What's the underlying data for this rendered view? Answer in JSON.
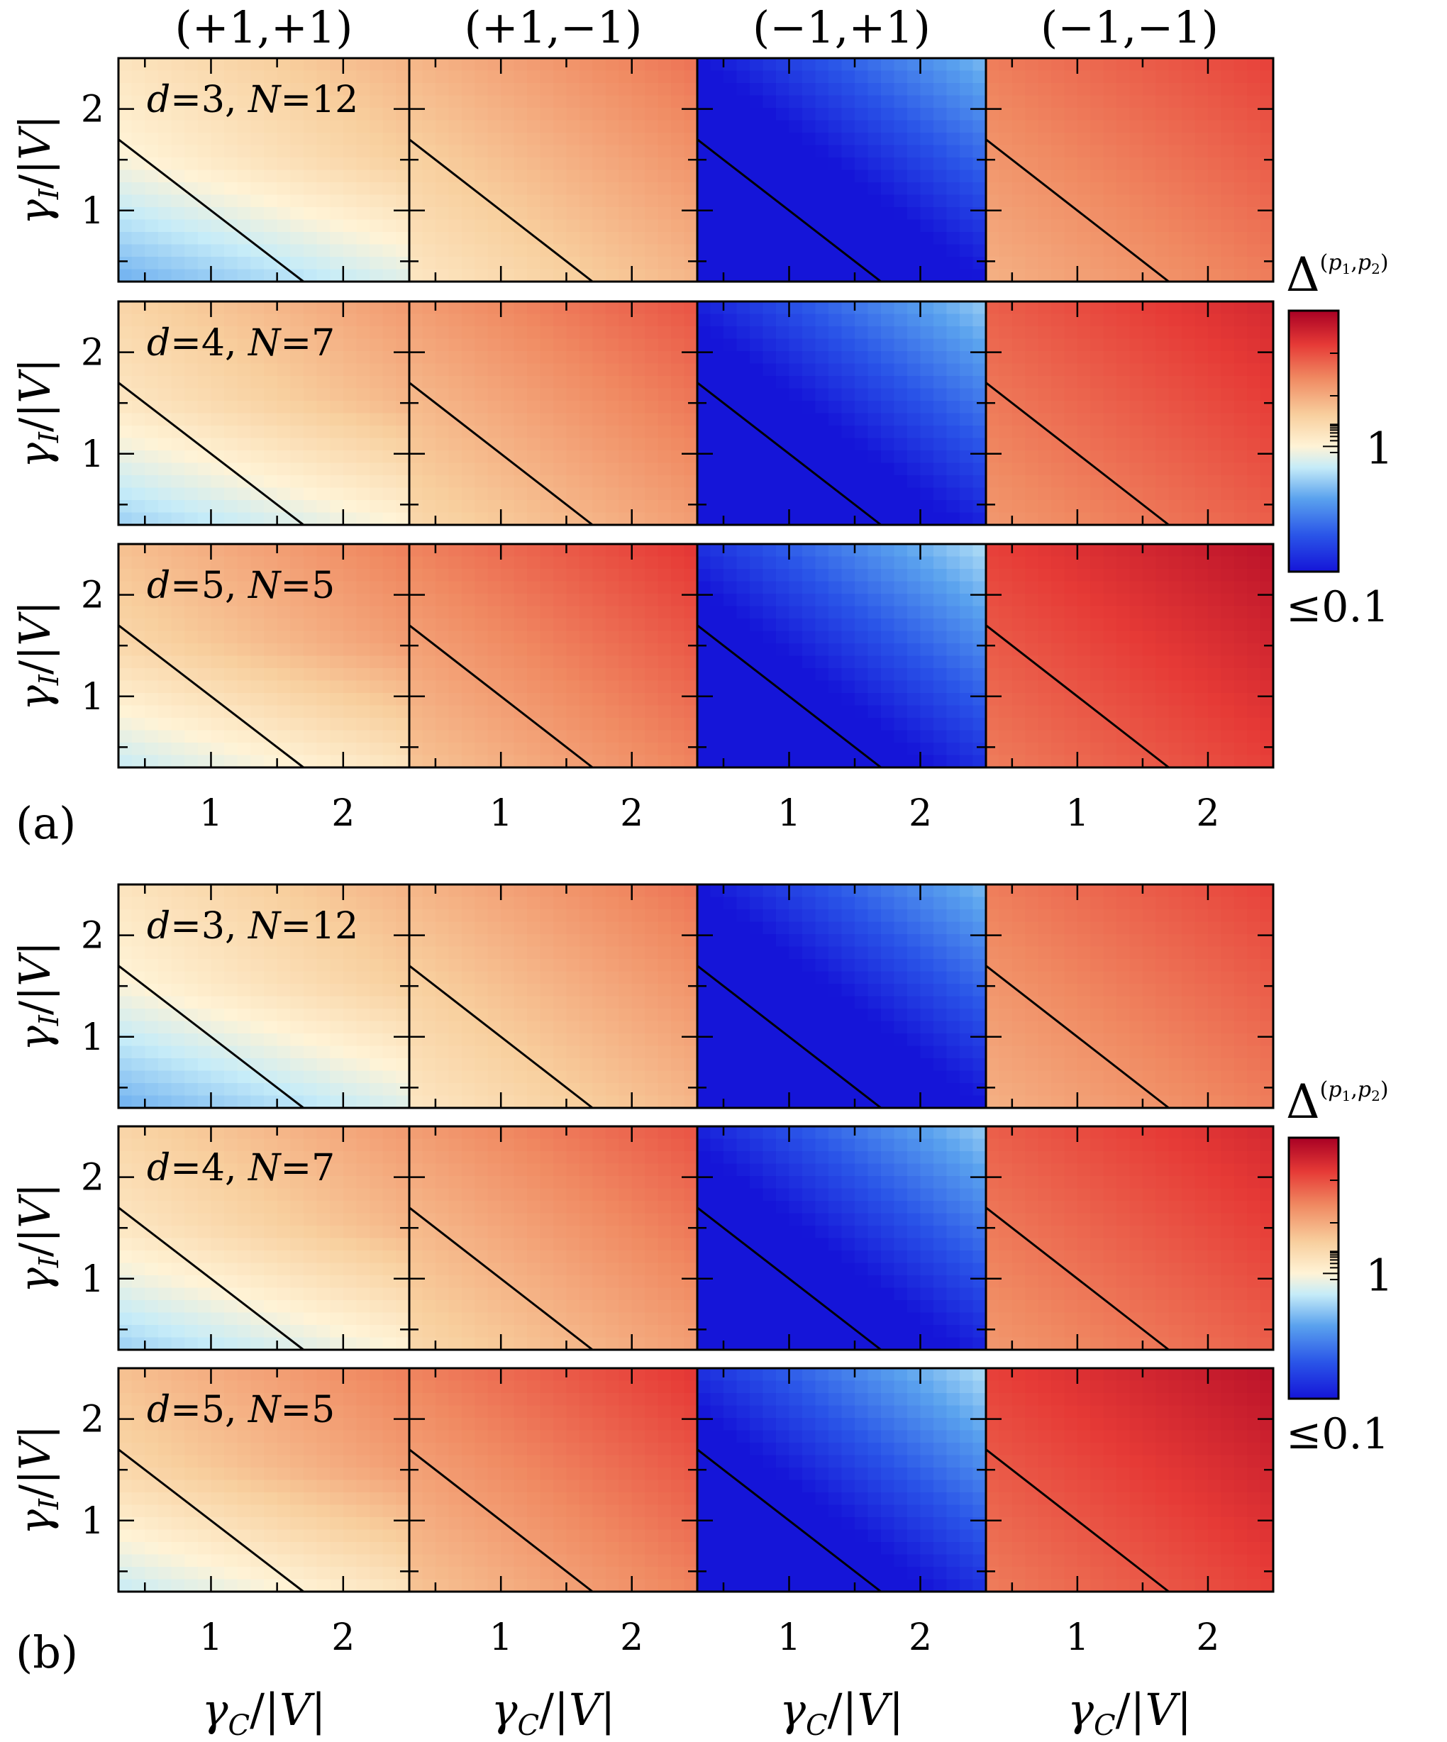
{
  "figure": {
    "column_headers": [
      "(+1,+1)",
      "(+1,−1)",
      "(−1,+1)",
      "(−1,−1)"
    ],
    "x_axis_label": "γC/|V|",
    "y_axis_label": "γI/|V|",
    "colorbar": {
      "title": "Δ(p1,p2)",
      "tick_one": "1",
      "tick_low": "≤0.1"
    }
  },
  "chart_data": [
    {
      "panel": "(a)",
      "type": "heatmap",
      "columns": [
        "(+1,+1)",
        "(+1,−1)",
        "(−1,+1)",
        "(−1,−1)"
      ],
      "rows": [
        {
          "label_d": "d",
          "d": "3",
          "label_n": "N",
          "n": "12"
        },
        {
          "label_d": "d",
          "d": "4",
          "label_n": "N",
          "n": "7"
        },
        {
          "label_d": "d",
          "d": "5",
          "label_n": "N",
          "n": "5"
        }
      ],
      "xlabel": "γC/|V|",
      "ylabel": "γI/|V|",
      "xlim": [
        0.3,
        2.5
      ],
      "ylim": [
        0.3,
        2.5
      ],
      "xticks": [
        "1",
        "2"
      ],
      "yticks": [
        "1",
        "2"
      ],
      "overlay_line": {
        "x": [
          0.3,
          1.7
        ],
        "y": [
          1.7,
          0.3
        ]
      },
      "colorscale": {
        "min_label": "≤0.1",
        "mid_label": "1",
        "scale": "log",
        "low_color": "#1515d8",
        "mid_color": "#fff3d6",
        "high_color": "#a80024"
      }
    },
    {
      "panel": "(b)",
      "type": "heatmap",
      "columns": [
        "(+1,+1)",
        "(+1,−1)",
        "(−1,+1)",
        "(−1,−1)"
      ],
      "rows": [
        {
          "label_d": "d",
          "d": "3",
          "label_n": "N",
          "n": "12"
        },
        {
          "label_d": "d",
          "d": "4",
          "label_n": "N",
          "n": "7"
        },
        {
          "label_d": "d",
          "d": "5",
          "label_n": "N",
          "n": "5"
        }
      ],
      "xlabel": "γC/|V|",
      "ylabel": "γI/|V|",
      "xlim": [
        0.3,
        2.5
      ],
      "ylim": [
        0.3,
        2.5
      ],
      "xticks": [
        "1",
        "2"
      ],
      "yticks": [
        "1",
        "2"
      ],
      "overlay_line": {
        "x": [
          0.3,
          1.7
        ],
        "y": [
          1.7,
          0.3
        ]
      },
      "colorscale": {
        "min_label": "≤0.1",
        "mid_label": "1",
        "scale": "log",
        "low_color": "#1515d8",
        "mid_color": "#fff3d6",
        "high_color": "#a80024"
      }
    }
  ]
}
